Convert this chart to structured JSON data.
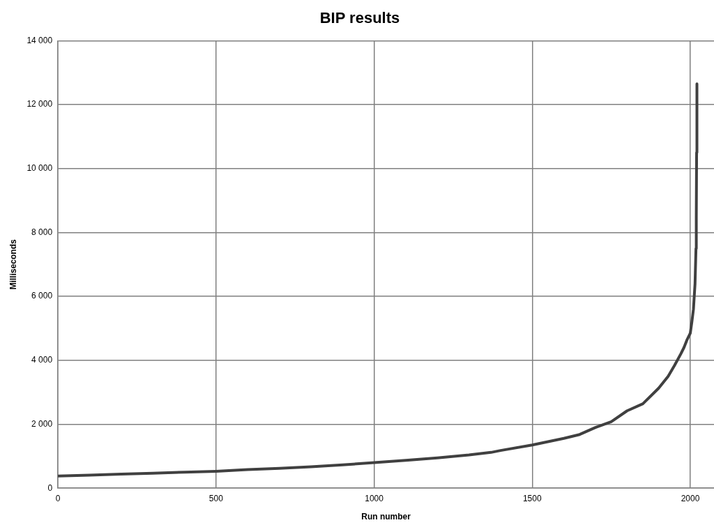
{
  "chart_data": {
    "type": "line",
    "title": "BIP results",
    "xlabel": "Run number",
    "ylabel": "Milliseconds",
    "xlim": [
      0,
      2075
    ],
    "xticks": [
      0,
      500,
      1000,
      1500,
      2000
    ],
    "ylim": [
      0,
      14000
    ],
    "yticks": [
      0,
      {
        "value": 2000,
        "label": "2 000"
      },
      {
        "value": 4000,
        "label": "4 000"
      },
      {
        "value": 6000,
        "label": "6 000"
      },
      {
        "value": 8000,
        "label": "8 000"
      },
      {
        "value": 10000,
        "label": "10 000"
      },
      {
        "value": 12000,
        "label": "12 000"
      },
      {
        "value": 14000,
        "label": "14 000"
      }
    ],
    "grid": true,
    "legend": false,
    "marker": "none",
    "line_style": "solid",
    "series": [
      {
        "color": "#404040",
        "x": [
          0,
          100,
          200,
          300,
          400,
          500,
          600,
          700,
          800,
          900,
          1000,
          1100,
          1200,
          1300,
          1370,
          1400,
          1500,
          1600,
          1650,
          1700,
          1750,
          1800,
          1850,
          1900,
          1930,
          1950,
          1970,
          1980,
          1990,
          2000,
          2005,
          2010,
          2015,
          2018,
          2019,
          2020,
          2021
        ],
        "values": [
          380,
          410,
          440,
          470,
          500,
          530,
          580,
          620,
          670,
          730,
          800,
          870,
          950,
          1040,
          1120,
          1180,
          1350,
          1560,
          1680,
          1900,
          2080,
          2420,
          2640,
          3130,
          3500,
          3840,
          4200,
          4400,
          4650,
          4850,
          5200,
          5600,
          6400,
          7500,
          8500,
          10500,
          12650
        ]
      }
    ]
  }
}
